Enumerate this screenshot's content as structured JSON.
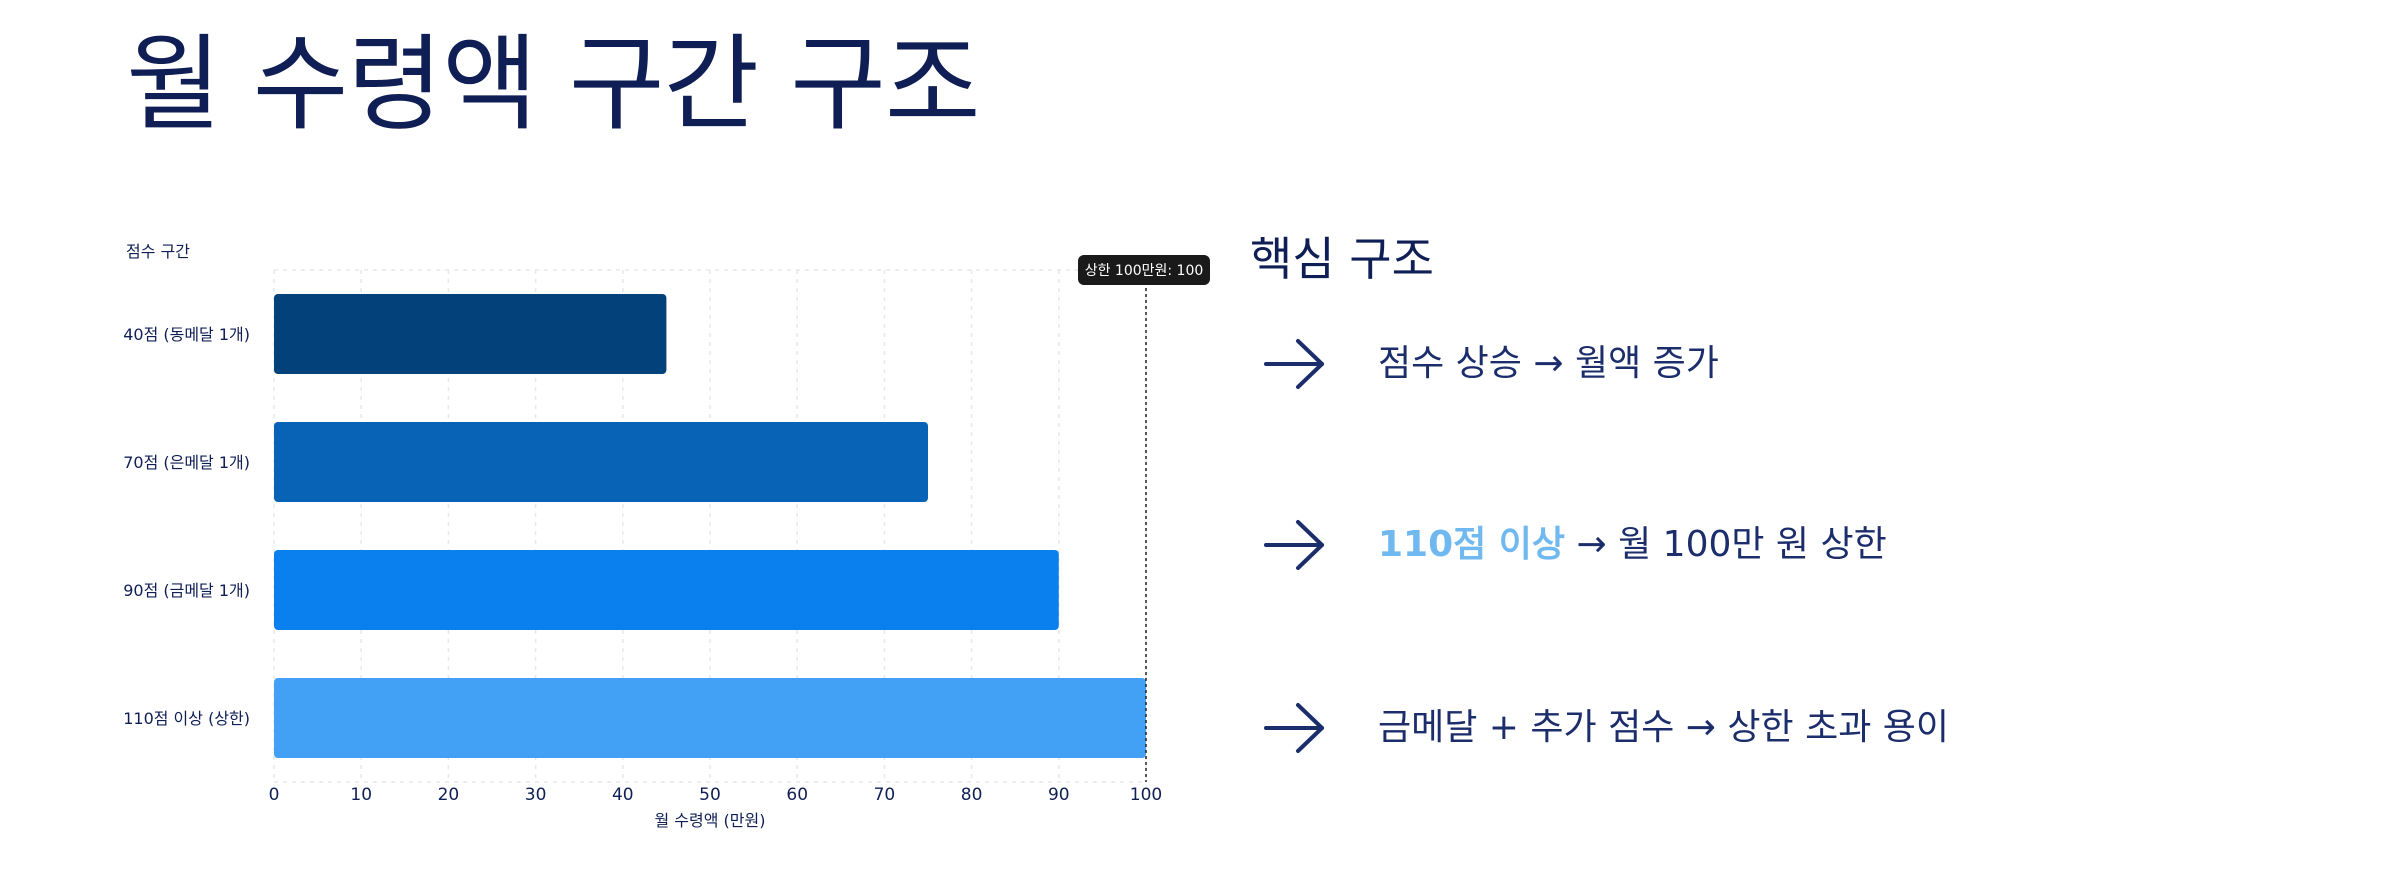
{
  "title": "월 수령액 구간 구조",
  "chart_data": {
    "type": "bar",
    "orientation": "horizontal",
    "ylabel": "점수 구간",
    "xlabel": "월 수령액 (만원)",
    "categories": [
      "40점 (동메달 1개)",
      "70점 (은메달 1개)",
      "90점 (금메달 1개)",
      "110점 이상 (상한)"
    ],
    "values": [
      45,
      75,
      90,
      100
    ],
    "bar_colors": [
      "#03417a",
      "#0862b5",
      "#0a80ee",
      "#42a0f5"
    ],
    "xlim": [
      0,
      100
    ],
    "xticks": [
      0,
      10,
      20,
      30,
      40,
      50,
      60,
      70,
      80,
      90,
      100
    ],
    "grid": true,
    "reference_line": {
      "value": 100,
      "label": "상한 100만원: 100"
    }
  },
  "panel": {
    "title": "핵심 구조",
    "points": [
      {
        "highlight": "",
        "text": "점수 상승 → 월액 증가"
      },
      {
        "highlight": "110점 이상",
        "text": " → 월 100만 원 상한"
      },
      {
        "highlight": "",
        "text": "금메달 + 추가 점수 → 상한 초과 용이"
      }
    ]
  },
  "colors": {
    "title": "#0f1f55",
    "text": "#1b2d6b",
    "highlight": "#6fb8f0",
    "grid": "#e6e8ee",
    "annotation_bg": "#1a1a1a"
  }
}
